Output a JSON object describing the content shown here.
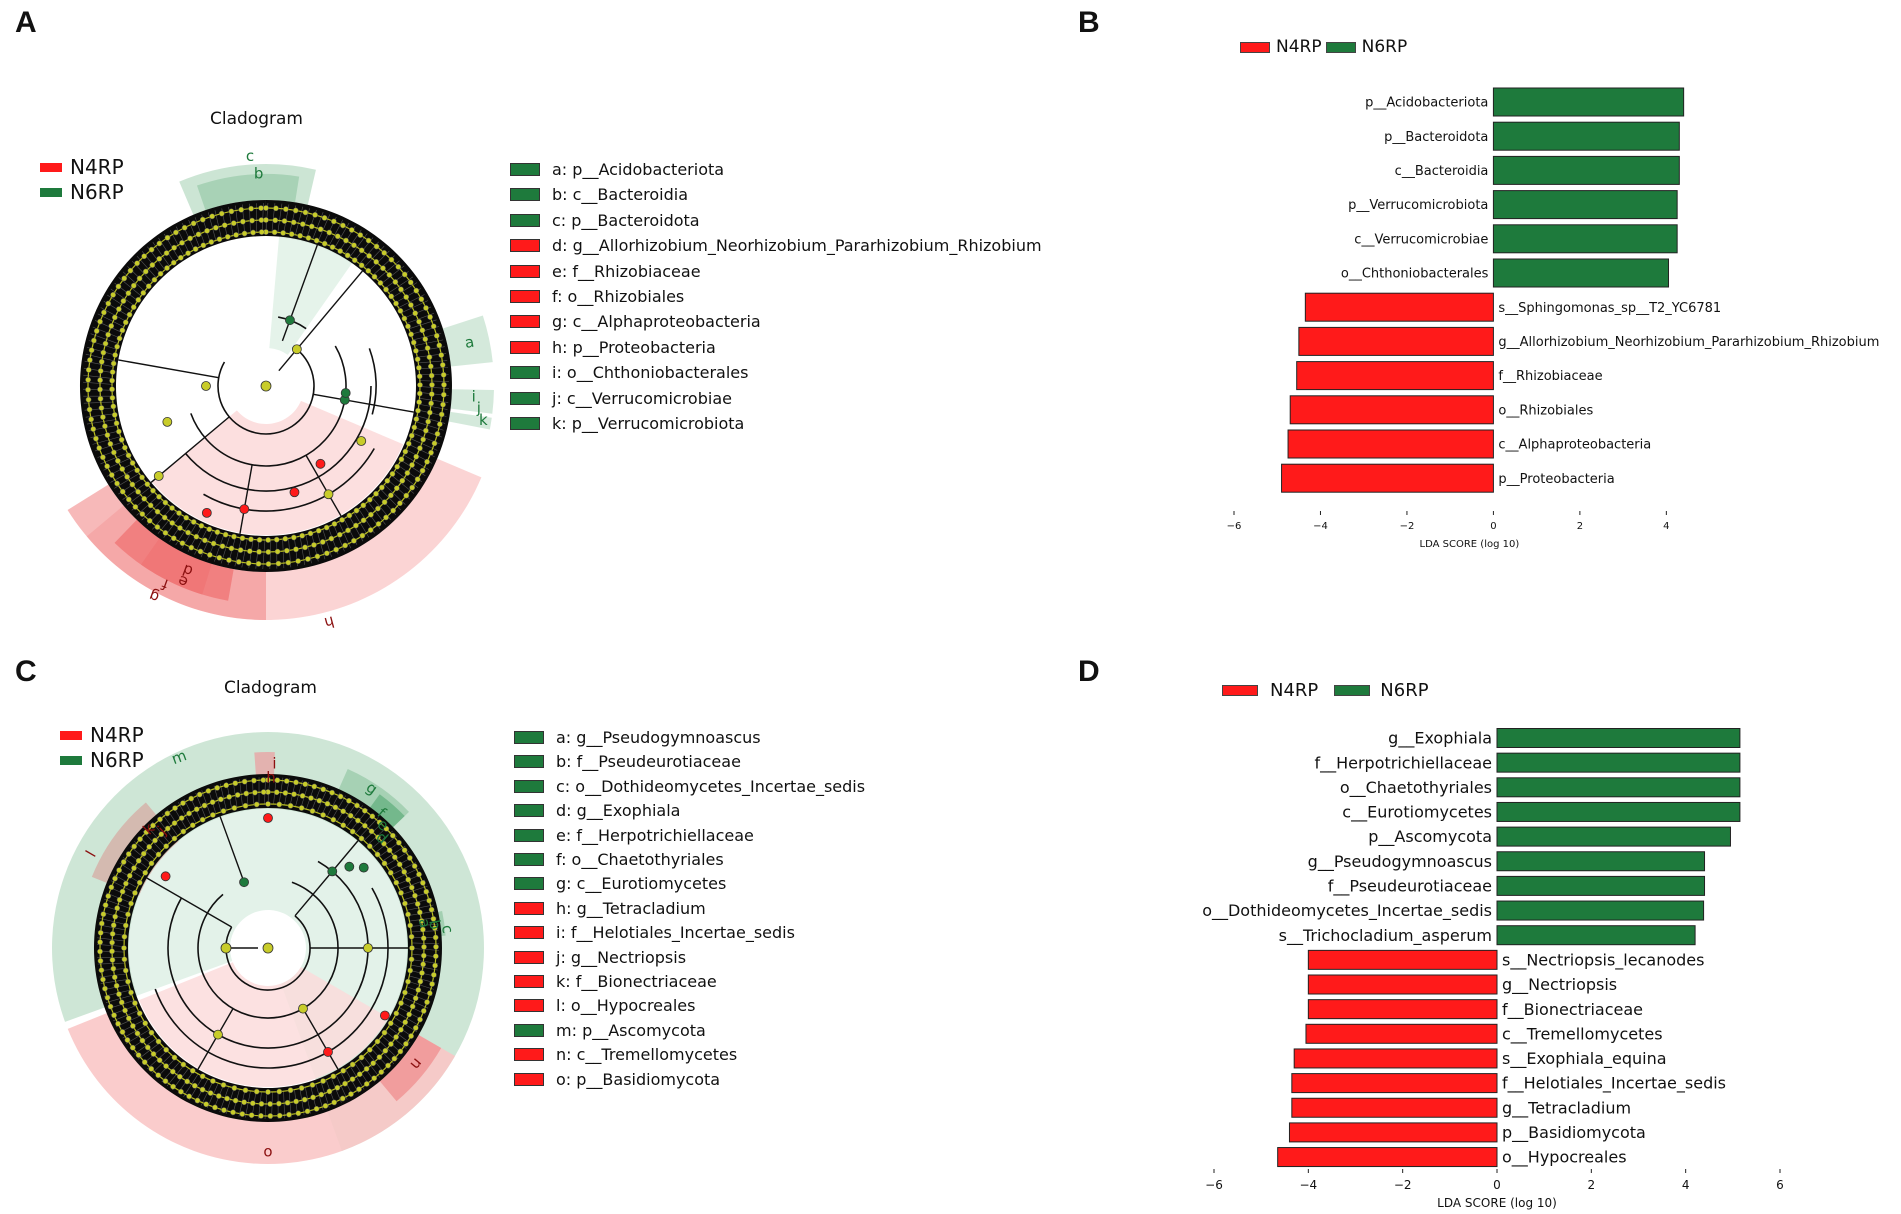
{
  "colors": {
    "N4RP": "#ff1a1a",
    "N6RP": "#1e7a3c",
    "node": "#c8cc2a",
    "n4_sector": "#f8b4b4",
    "n6_sector": "#b9dcc4"
  },
  "panels": {
    "A": {
      "letter": "A",
      "title": "Cladogram",
      "legend": [
        "N4RP",
        "N6RP"
      ],
      "key": [
        {
          "code": "a: p__Acidobacteriota",
          "group": "N6RP"
        },
        {
          "code": "b: c__Bacteroidia",
          "group": "N6RP"
        },
        {
          "code": "c: p__Bacteroidota",
          "group": "N6RP"
        },
        {
          "code": "d: g__Allorhizobium_Neorhizobium_Pararhizobium_Rhizobium",
          "group": "N4RP"
        },
        {
          "code": "e: f__Rhizobiaceae",
          "group": "N4RP"
        },
        {
          "code": "f: o__Rhizobiales",
          "group": "N4RP"
        },
        {
          "code": "g: c__Alphaproteobacteria",
          "group": "N4RP"
        },
        {
          "code": "h: p__Proteobacteria",
          "group": "N4RP"
        },
        {
          "code": "i: o__Chthoniobacterales",
          "group": "N6RP"
        },
        {
          "code": "j: c__Verrucomicrobiae",
          "group": "N6RP"
        },
        {
          "code": "k: p__Verrucomicrobiota",
          "group": "N6RP"
        }
      ],
      "sector_labels": [
        "a",
        "b",
        "c",
        "d",
        "e",
        "f",
        "g",
        "h",
        "i",
        "j",
        "k"
      ]
    },
    "C": {
      "letter": "C",
      "title": "Cladogram",
      "legend": [
        "N4RP",
        "N6RP"
      ],
      "key": [
        {
          "code": "a: g__Pseudogymnoascus",
          "group": "N6RP"
        },
        {
          "code": "b: f__Pseudeurotiaceae",
          "group": "N6RP"
        },
        {
          "code": "c: o__Dothideomycetes_Incertae_sedis",
          "group": "N6RP"
        },
        {
          "code": "d: g__Exophiala",
          "group": "N6RP"
        },
        {
          "code": "e: f__Herpotrichiellaceae",
          "group": "N6RP"
        },
        {
          "code": "f: o__Chaetothyriales",
          "group": "N6RP"
        },
        {
          "code": "g: c__Eurotiomycetes",
          "group": "N6RP"
        },
        {
          "code": "h: g__Tetracladium",
          "group": "N4RP"
        },
        {
          "code": "i: f__Helotiales_Incertae_sedis",
          "group": "N4RP"
        },
        {
          "code": "j: g__Nectriopsis",
          "group": "N4RP"
        },
        {
          "code": "k: f__Bionectriaceae",
          "group": "N4RP"
        },
        {
          "code": "l: o__Hypocreales",
          "group": "N4RP"
        },
        {
          "code": "m: p__Ascomycota",
          "group": "N6RP"
        },
        {
          "code": "n: c__Tremellomycetes",
          "group": "N4RP"
        },
        {
          "code": "o: p__Basidiomycota",
          "group": "N4RP"
        }
      ],
      "sector_labels": [
        "a",
        "b",
        "c",
        "d",
        "e",
        "f",
        "g",
        "h",
        "i",
        "j",
        "k",
        "l",
        "m",
        "n",
        "o"
      ]
    },
    "B": {
      "letter": "B",
      "legend": [
        "N4RP",
        "N6RP"
      ]
    },
    "D": {
      "letter": "D",
      "legend": [
        "N4RP",
        "N6RP"
      ]
    }
  },
  "chart_data": [
    {
      "panel": "B",
      "type": "bar",
      "orientation": "horizontal",
      "xlabel": "LDA SCORE (log 10)",
      "xlim": [
        -6,
        4.2
      ],
      "xticks": [
        -6,
        -4,
        -2,
        0,
        2,
        4
      ],
      "xtick_labels": [
        "−6",
        "−4",
        "−2",
        "0",
        "2",
        "4"
      ],
      "bars": [
        {
          "label": "p__Acidobacteriota",
          "value": 4.4,
          "group": "N6RP"
        },
        {
          "label": "p__Bacteroidota",
          "value": 4.3,
          "group": "N6RP"
        },
        {
          "label": "c__Bacteroidia",
          "value": 4.3,
          "group": "N6RP"
        },
        {
          "label": "p__Verrucomicrobiota",
          "value": 4.25,
          "group": "N6RP"
        },
        {
          "label": "c__Verrucomicrobiae",
          "value": 4.25,
          "group": "N6RP"
        },
        {
          "label": "o__Chthoniobacterales",
          "value": 4.05,
          "group": "N6RP"
        },
        {
          "label": "s__Sphingomonas_sp__T2_YC6781",
          "value": -4.35,
          "group": "N4RP"
        },
        {
          "label": "g__Allorhizobium_Neorhizobium_Pararhizobium_Rhizobium",
          "value": -4.5,
          "group": "N4RP"
        },
        {
          "label": "f__Rhizobiaceae",
          "value": -4.55,
          "group": "N4RP"
        },
        {
          "label": "o__Rhizobiales",
          "value": -4.7,
          "group": "N4RP"
        },
        {
          "label": "c__Alphaproteobacteria",
          "value": -4.75,
          "group": "N4RP"
        },
        {
          "label": "p__Proteobacteria",
          "value": -4.9,
          "group": "N4RP"
        }
      ]
    },
    {
      "panel": "D",
      "type": "bar",
      "orientation": "horizontal",
      "xlabel": "LDA SCORE (log 10)",
      "xlim": [
        -6,
        6
      ],
      "xticks": [
        -6,
        -4,
        -2,
        0,
        2,
        4,
        6
      ],
      "xtick_labels": [
        "−6",
        "−4",
        "−2",
        "0",
        "2",
        "4",
        "6"
      ],
      "bars": [
        {
          "label": "g__Exophiala",
          "value": 5.15,
          "group": "N6RP"
        },
        {
          "label": "f__Herpotrichiellaceae",
          "value": 5.15,
          "group": "N6RP"
        },
        {
          "label": "o__Chaetothyriales",
          "value": 5.15,
          "group": "N6RP"
        },
        {
          "label": "c__Eurotiomycetes",
          "value": 5.15,
          "group": "N6RP"
        },
        {
          "label": "p__Ascomycota",
          "value": 4.95,
          "group": "N6RP"
        },
        {
          "label": "g__Pseudogymnoascus",
          "value": 4.4,
          "group": "N6RP"
        },
        {
          "label": "f__Pseudeurotiaceae",
          "value": 4.4,
          "group": "N6RP"
        },
        {
          "label": "o__Dothideomycetes_Incertae_sedis",
          "value": 4.38,
          "group": "N6RP"
        },
        {
          "label": "s__Trichocladium_asperum",
          "value": 4.2,
          "group": "N6RP"
        },
        {
          "label": "s__Nectriopsis_lecanodes",
          "value": -4.0,
          "group": "N4RP"
        },
        {
          "label": "g__Nectriopsis",
          "value": -4.0,
          "group": "N4RP"
        },
        {
          "label": "f__Bionectriaceae",
          "value": -4.0,
          "group": "N4RP"
        },
        {
          "label": "c__Tremellomycetes",
          "value": -4.05,
          "group": "N4RP"
        },
        {
          "label": "s__Exophiala_equina",
          "value": -4.3,
          "group": "N4RP"
        },
        {
          "label": "f__Helotiales_Incertae_sedis",
          "value": -4.35,
          "group": "N4RP"
        },
        {
          "label": "g__Tetracladium",
          "value": -4.35,
          "group": "N4RP"
        },
        {
          "label": "p__Basidiomycota",
          "value": -4.4,
          "group": "N4RP"
        },
        {
          "label": "o__Hypocreales",
          "value": -4.65,
          "group": "N4RP"
        }
      ]
    }
  ]
}
